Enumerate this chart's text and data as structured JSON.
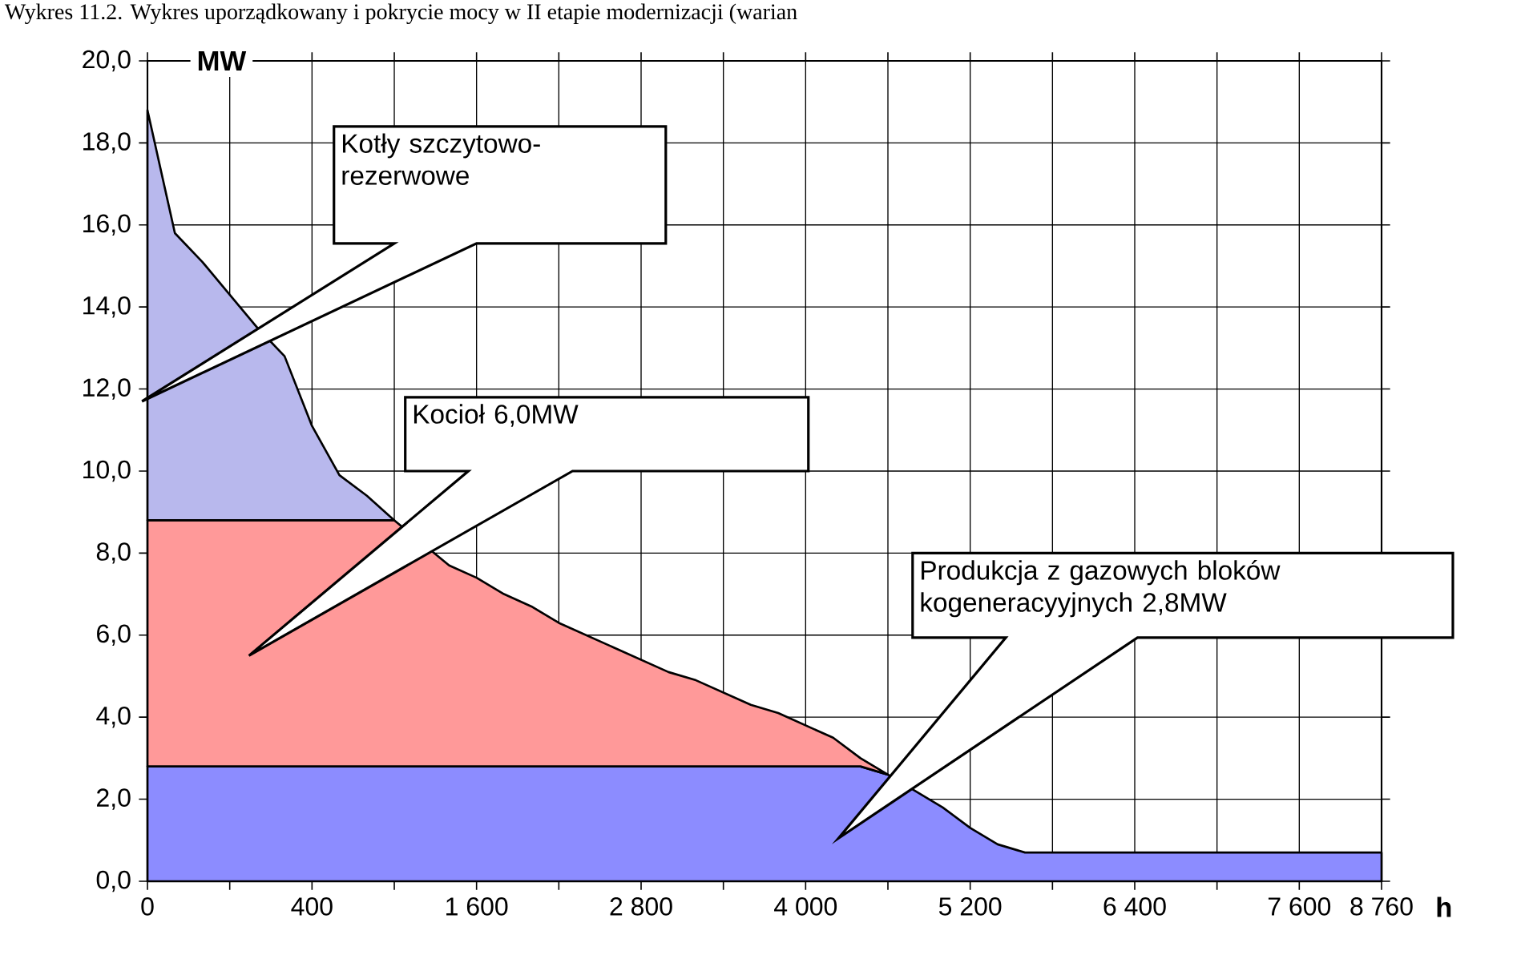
{
  "chart_data": {
    "type": "area",
    "stacked": true,
    "grid": true,
    "title": "Wykres 11.2. Wykres uporządkowany i pokrycie mocy w II etapie modernizacji (warian",
    "xlabel": "h",
    "ylabel": "MW",
    "categories": [
      "0",
      null,
      null,
      null,
      null,
      null,
      "400",
      null,
      null,
      null,
      null,
      null,
      "1 600",
      null,
      null,
      null,
      null,
      null,
      "2 800",
      null,
      null,
      null,
      null,
      null,
      "4 000",
      null,
      null,
      null,
      null,
      null,
      "5 200",
      null,
      null,
      null,
      null,
      null,
      "6 400",
      null,
      null,
      null,
      null,
      null,
      "7 600",
      null,
      null,
      "8 760"
    ],
    "ylim": [
      0,
      20
    ],
    "yticks": [
      {
        "value": 0,
        "label": "0,0"
      },
      {
        "value": 2,
        "label": "2,0"
      },
      {
        "value": 4,
        "label": "4,0"
      },
      {
        "value": 6,
        "label": "6,0"
      },
      {
        "value": 8,
        "label": "8,0"
      },
      {
        "value": 10,
        "label": "10,0"
      },
      {
        "value": 12,
        "label": "12,0"
      },
      {
        "value": 14,
        "label": "14,0"
      },
      {
        "value": 16,
        "label": "16,0"
      },
      {
        "value": 18,
        "label": "18,0"
      },
      {
        "value": 20,
        "label": "20,0"
      }
    ],
    "series": [
      {
        "color": "#8c8cff",
        "values": [
          2.8,
          2.8,
          2.8,
          2.8,
          2.8,
          2.8,
          2.8,
          2.8,
          2.8,
          2.8,
          2.8,
          2.8,
          2.8,
          2.8,
          2.8,
          2.8,
          2.8,
          2.8,
          2.8,
          2.8,
          2.8,
          2.8,
          2.8,
          2.8,
          2.8,
          2.8,
          2.8,
          2.6,
          2.2,
          1.8,
          1.3,
          0.9,
          0.7,
          0.7,
          0.7,
          0.7,
          0.7,
          0.7,
          0.7,
          0.7,
          0.7,
          0.7,
          0.7,
          0.7,
          0.7,
          0.7
        ]
      },
      {
        "color": "#ff9999",
        "values": [
          6.0,
          6.0,
          6.0,
          6.0,
          6.0,
          6.0,
          6.0,
          6.0,
          6.0,
          6.0,
          null,
          4.9,
          4.6,
          4.2,
          3.9,
          3.5,
          3.2,
          2.9,
          2.6,
          2.3,
          2.1,
          1.8,
          1.5,
          1.3,
          1.0,
          0.7,
          0.2,
          0,
          null,
          null,
          null,
          null,
          null,
          null,
          null,
          null,
          null,
          null,
          null,
          null,
          null,
          null,
          null,
          null,
          null,
          null
        ]
      },
      {
        "color": "#b8b8ed",
        "values": [
          10.0,
          7.0,
          6.3,
          5.5,
          4.7,
          4.0,
          2.3,
          1.1,
          0.6,
          0,
          null,
          null,
          null,
          null,
          null,
          null,
          null,
          null,
          null,
          null,
          null,
          null,
          null,
          null,
          null,
          null,
          null,
          null,
          null,
          null,
          null,
          null,
          null,
          null,
          null,
          null,
          null,
          null,
          null,
          null,
          null,
          null,
          null,
          null,
          null,
          null
        ]
      }
    ],
    "annotations": [
      "Kotły szczytowo-rezerwowe",
      "Kocioł 6,0MW",
      "Produkcja z gazowych bloków kogeneracyyjnych 2,8MW"
    ]
  }
}
